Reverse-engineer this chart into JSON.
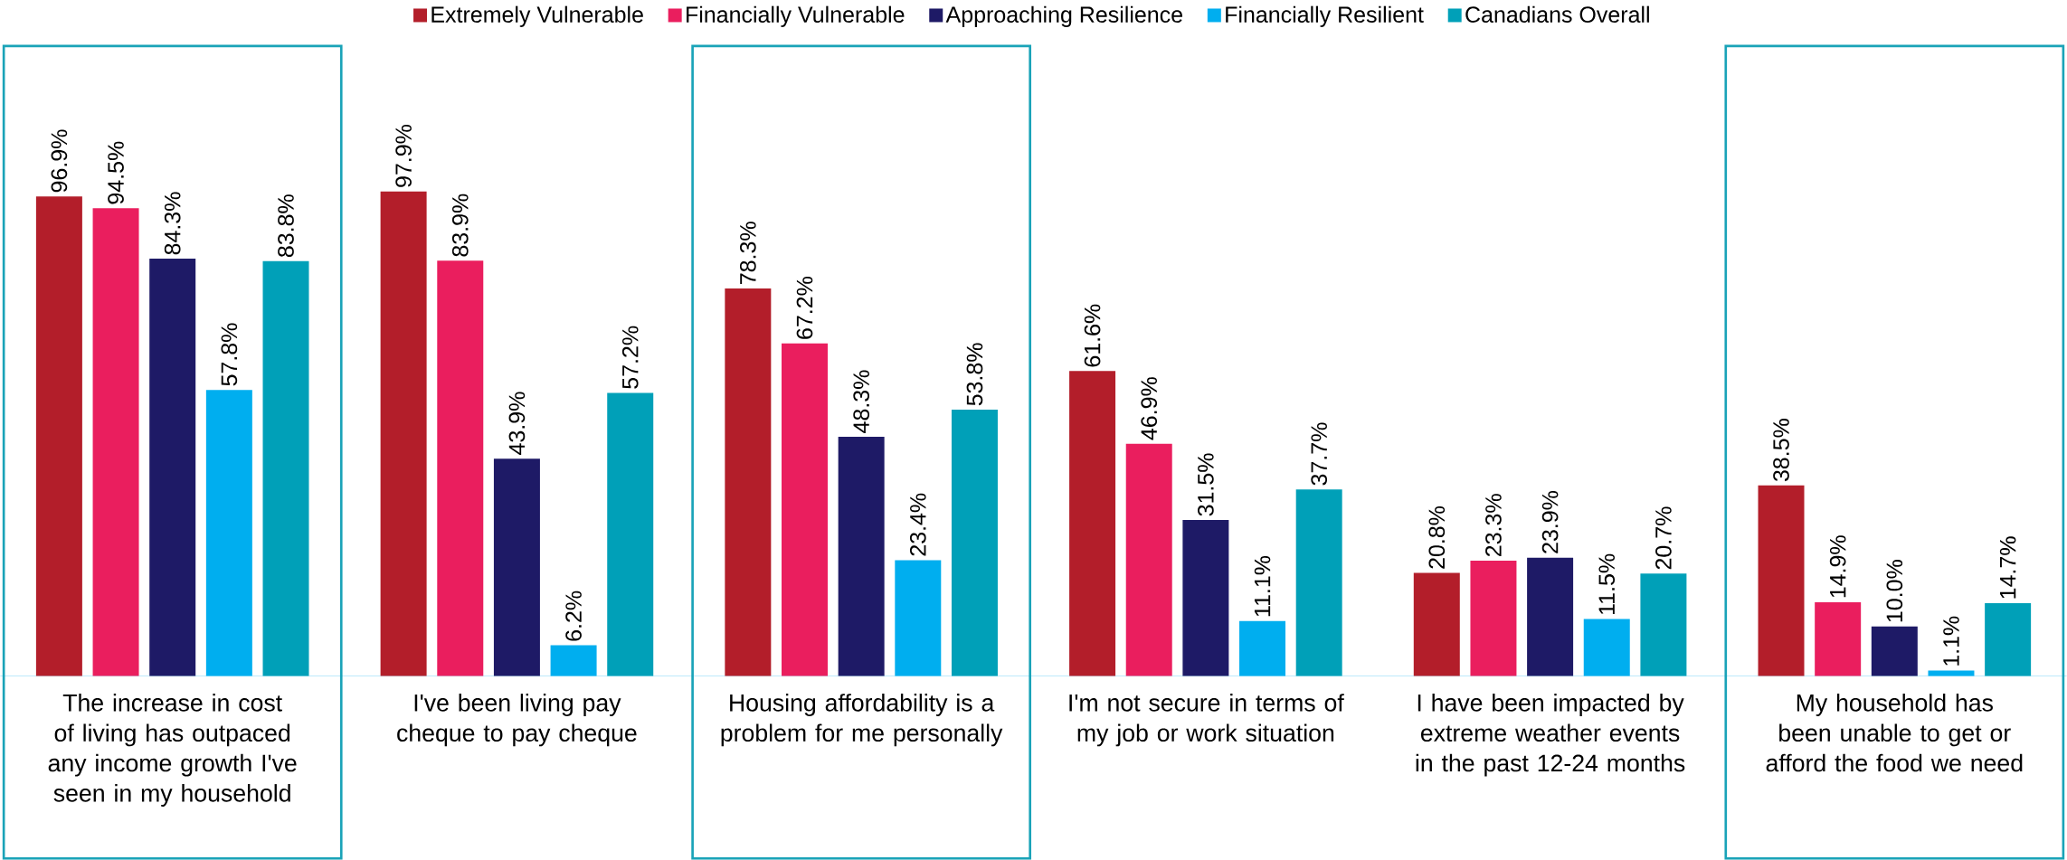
{
  "chart_data": {
    "type": "bar",
    "categories": [
      "The increase in cost of living has outpaced any income growth I've seen in my household",
      "I've been living pay cheque to pay cheque",
      "Housing affordability is a problem for me personally",
      "I'm not secure in terms of my job or work situation",
      "I have been impacted by extreme weather events in the past 12-24 months",
      "My household has been unable to get or afford the food we need"
    ],
    "series": [
      {
        "name": "Extremely Vulnerable",
        "color": "#b31e2a",
        "values": [
          96.9,
          97.9,
          78.3,
          61.6,
          20.8,
          38.5
        ],
        "value_labels": [
          "96.9%",
          "97.9%",
          "78.3%",
          "61.6%",
          "20.8%",
          "38.5%"
        ]
      },
      {
        "name": "Financially Vulnerable",
        "color": "#ea1e5e",
        "values": [
          94.5,
          83.9,
          67.2,
          46.9,
          23.3,
          14.9
        ],
        "value_labels": [
          "94.5%",
          "83.9%",
          "67.2%",
          "46.9%",
          "23.3%",
          "14.9%"
        ]
      },
      {
        "name": "Approaching Resilience",
        "color": "#1e1a66",
        "values": [
          84.3,
          43.9,
          48.3,
          31.5,
          23.9,
          10.0
        ],
        "value_labels": [
          "84.3%",
          "43.9%",
          "48.3%",
          "31.5%",
          "23.9%",
          "10.0%"
        ]
      },
      {
        "name": "Financially Resilient",
        "color": "#00aeef",
        "values": [
          57.8,
          6.2,
          23.4,
          11.1,
          11.5,
          1.1
        ],
        "value_labels": [
          "57.8%",
          "6.2%",
          "23.4%",
          "11.1%",
          "11.5%",
          "1.1%"
        ]
      },
      {
        "name": "Canadians Overall",
        "color": "#00a0b8",
        "values": [
          83.8,
          57.2,
          53.8,
          37.7,
          20.7,
          14.7
        ],
        "value_labels": [
          "83.8%",
          "57.2%",
          "53.8%",
          "37.7%",
          "20.7%",
          "14.7%"
        ]
      }
    ],
    "legend": "top"
  }
}
